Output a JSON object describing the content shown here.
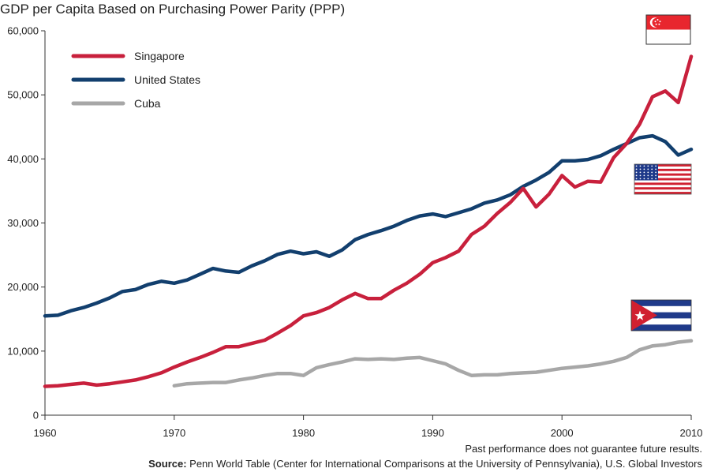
{
  "chart_data": {
    "type": "line",
    "title": "GDP per Capita Based on Purchasing Power Parity (PPP)",
    "xlabel": "",
    "ylabel": "",
    "xlim": [
      1960,
      2010
    ],
    "ylim": [
      0,
      60000
    ],
    "x_ticks": [
      1960,
      1970,
      1980,
      1990,
      2000,
      2010
    ],
    "y_ticks": [
      0,
      10000,
      20000,
      30000,
      40000,
      50000,
      60000
    ],
    "y_tick_labels": [
      "0",
      "10,000",
      "20,000",
      "30,000",
      "40,000",
      "50,000",
      "60,000"
    ],
    "legend_position": "top-left",
    "series": [
      {
        "name": "Singapore",
        "color": "#c8203c",
        "x": [
          1960,
          1961,
          1962,
          1963,
          1964,
          1965,
          1966,
          1967,
          1968,
          1969,
          1970,
          1971,
          1972,
          1973,
          1974,
          1975,
          1976,
          1977,
          1978,
          1979,
          1980,
          1981,
          1982,
          1983,
          1984,
          1985,
          1986,
          1987,
          1988,
          1989,
          1990,
          1991,
          1992,
          1993,
          1994,
          1995,
          1996,
          1997,
          1998,
          1999,
          2000,
          2001,
          2002,
          2003,
          2004,
          2005,
          2006,
          2007,
          2008,
          2009,
          2010
        ],
        "values": [
          4500,
          4600,
          4800,
          5000,
          4700,
          4900,
          5200,
          5500,
          6000,
          6600,
          7500,
          8300,
          9000,
          9800,
          10700,
          10700,
          11200,
          11700,
          12800,
          14000,
          15500,
          16000,
          16800,
          18000,
          19000,
          18200,
          18200,
          19500,
          20600,
          22000,
          23800,
          24600,
          25600,
          28200,
          29500,
          31500,
          33200,
          35400,
          32500,
          34500,
          37400,
          35600,
          36500,
          36400,
          40200,
          42400,
          45400,
          49700,
          50600,
          48800,
          56000
        ]
      },
      {
        "name": "United States",
        "color": "#123f6e",
        "x": [
          1960,
          1961,
          1962,
          1963,
          1964,
          1965,
          1966,
          1967,
          1968,
          1969,
          1970,
          1971,
          1972,
          1973,
          1974,
          1975,
          1976,
          1977,
          1978,
          1979,
          1980,
          1981,
          1982,
          1983,
          1984,
          1985,
          1986,
          1987,
          1988,
          1989,
          1990,
          1991,
          1992,
          1993,
          1994,
          1995,
          1996,
          1997,
          1998,
          1999,
          2000,
          2001,
          2002,
          2003,
          2004,
          2005,
          2006,
          2007,
          2008,
          2009,
          2010
        ],
        "values": [
          15500,
          15600,
          16300,
          16800,
          17500,
          18300,
          19300,
          19600,
          20400,
          20900,
          20600,
          21100,
          22000,
          22900,
          22500,
          22300,
          23300,
          24100,
          25100,
          25600,
          25200,
          25500,
          24800,
          25800,
          27400,
          28200,
          28800,
          29500,
          30400,
          31100,
          31400,
          31000,
          31600,
          32200,
          33100,
          33600,
          34400,
          35700,
          36700,
          37900,
          39700,
          39700,
          39900,
          40500,
          41500,
          42400,
          43300,
          43600,
          42700,
          40600,
          41500
        ]
      },
      {
        "name": "Cuba",
        "color": "#a7a7a7",
        "x": [
          1970,
          1971,
          1972,
          1973,
          1974,
          1975,
          1976,
          1977,
          1978,
          1979,
          1980,
          1981,
          1982,
          1983,
          1984,
          1985,
          1986,
          1987,
          1988,
          1989,
          1990,
          1991,
          1992,
          1993,
          1994,
          1995,
          1996,
          1997,
          1998,
          1999,
          2000,
          2001,
          2002,
          2003,
          2004,
          2005,
          2006,
          2007,
          2008,
          2009,
          2010
        ],
        "values": [
          4600,
          4900,
          5000,
          5100,
          5100,
          5500,
          5800,
          6200,
          6500,
          6500,
          6200,
          7400,
          7900,
          8300,
          8800,
          8700,
          8800,
          8700,
          8900,
          9000,
          8500,
          8000,
          7000,
          6200,
          6300,
          6300,
          6500,
          6600,
          6700,
          7000,
          7300,
          7500,
          7700,
          8000,
          8400,
          9000,
          10200,
          10800,
          11000,
          11400,
          11600
        ]
      }
    ],
    "flags": [
      "Singapore flag",
      "United States flag",
      "Cuba flag"
    ],
    "annotations": [
      "Past performance does not guarantee future results."
    ]
  },
  "footer": {
    "disclaimer": "Past performance does not guarantee future results.",
    "source_label": "Source:",
    "source_text": " Penn World Table (Center for International Comparisons at the University of Pennsylvania), U.S. Global Investors"
  },
  "colors": {
    "singapore_red": "#c8203c",
    "us_blue": "#123f6e",
    "cuba_gray": "#a7a7a7",
    "flag_blue": "#1f3a8a",
    "flag_red": "#d02030"
  }
}
